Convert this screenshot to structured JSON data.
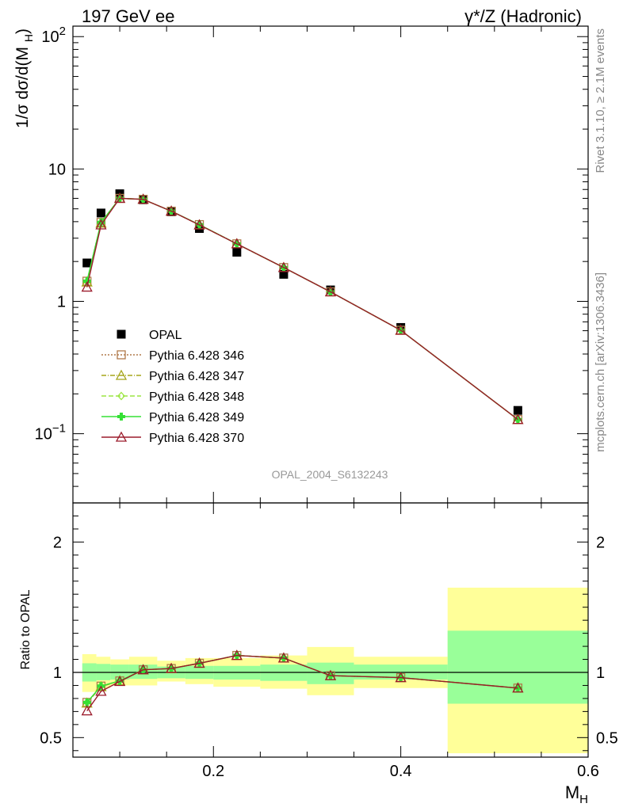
{
  "header": {
    "left_title": "197 GeV ee",
    "right_title": "γ*/Z (Hadronic)"
  },
  "side_labels": {
    "rivet": "Rivet 3.1.10, ≥ 2.1M events",
    "mcplots": "mcplots.cern.ch [arXiv:1306.3436]"
  },
  "watermark": "OPAL_2004_S6132243",
  "chart_data": [
    {
      "type": "scatter",
      "panel": "main",
      "ylabel": "1/σ dσ/d(M_H)",
      "yscale": "log",
      "xlim": [
        0.05,
        0.6
      ],
      "ylim": [
        0.03,
        120
      ],
      "y_ticklabels": [
        {
          "value": 0.1,
          "base": "10",
          "exp": "−1"
        },
        {
          "value": 1,
          "base": "1",
          "exp": ""
        },
        {
          "value": 10,
          "base": "10",
          "exp": ""
        },
        {
          "value": 100,
          "base": "10",
          "exp": "2"
        }
      ],
      "x": [
        0.065,
        0.08,
        0.1,
        0.125,
        0.155,
        0.185,
        0.225,
        0.275,
        0.325,
        0.4,
        0.525
      ],
      "series": [
        {
          "name": "OPAL",
          "role": "data",
          "color": "#000000",
          "marker": "square",
          "values": [
            1.95,
            4.65,
            6.5,
            5.85,
            4.75,
            3.55,
            2.35,
            1.6,
            1.22,
            0.635,
            0.15
          ]
        },
        {
          "name": "Pythia 6.428 346",
          "color": "#b07a4a",
          "marker": "open-square",
          "dash": "2,2",
          "values": [
            1.42,
            3.95,
            6.0,
            5.9,
            4.8,
            3.8,
            2.72,
            1.8,
            1.18,
            0.605,
            0.128
          ]
        },
        {
          "name": "Pythia 6.428 347",
          "color": "#a5a51a",
          "marker": "open-triangle",
          "dash": "6,2,1,2",
          "values": [
            1.4,
            3.9,
            6.0,
            5.9,
            4.8,
            3.78,
            2.72,
            1.8,
            1.18,
            0.605,
            0.128
          ]
        },
        {
          "name": "Pythia 6.428 348",
          "color": "#9ce642",
          "marker": "open-diamond",
          "dash": "6,3",
          "values": [
            1.41,
            3.95,
            6.0,
            5.9,
            4.8,
            3.8,
            2.72,
            1.8,
            1.18,
            0.605,
            0.128
          ]
        },
        {
          "name": "Pythia 6.428 349",
          "color": "#35e035",
          "marker": "cross",
          "dash": "",
          "values": [
            1.42,
            3.95,
            6.0,
            5.9,
            4.8,
            3.8,
            2.72,
            1.8,
            1.18,
            0.605,
            0.128
          ]
        },
        {
          "name": "Pythia 6.428 370",
          "color": "#9b1b2b",
          "marker": "open-triangle",
          "dash": "",
          "values": [
            1.28,
            3.78,
            6.0,
            5.9,
            4.8,
            3.78,
            2.72,
            1.8,
            1.18,
            0.605,
            0.128
          ]
        }
      ]
    },
    {
      "type": "line",
      "panel": "ratio",
      "ylabel": "Ratio to OPAL",
      "xlabel": "M_H",
      "xlim": [
        0.05,
        0.6
      ],
      "ylim": [
        0.35,
        2.3
      ],
      "x_ticklabels": [
        0.2,
        0.4,
        0.6
      ],
      "y_ticklabels": [
        0.5,
        1,
        2
      ],
      "bands": [
        {
          "x0": 0.06,
          "x1": 0.075,
          "stat": [
            0.93,
            1.07
          ],
          "total": [
            0.85,
            1.14
          ]
        },
        {
          "x0": 0.075,
          "x1": 0.09,
          "stat": [
            0.94,
            1.065
          ],
          "total": [
            0.88,
            1.12
          ]
        },
        {
          "x0": 0.09,
          "x1": 0.11,
          "stat": [
            0.945,
            1.06
          ],
          "total": [
            0.9,
            1.1
          ]
        },
        {
          "x0": 0.11,
          "x1": 0.14,
          "stat": [
            0.95,
            1.06
          ],
          "total": [
            0.9,
            1.12
          ]
        },
        {
          "x0": 0.14,
          "x1": 0.17,
          "stat": [
            0.955,
            1.045
          ],
          "total": [
            0.93,
            1.09
          ]
        },
        {
          "x0": 0.17,
          "x1": 0.2,
          "stat": [
            0.95,
            1.05
          ],
          "total": [
            0.91,
            1.11
          ]
        },
        {
          "x0": 0.2,
          "x1": 0.25,
          "stat": [
            0.945,
            1.05
          ],
          "total": [
            0.89,
            1.11
          ]
        },
        {
          "x0": 0.25,
          "x1": 0.3,
          "stat": [
            0.935,
            1.06
          ],
          "total": [
            0.875,
            1.13
          ]
        },
        {
          "x0": 0.3,
          "x1": 0.35,
          "stat": [
            0.91,
            1.075
          ],
          "total": [
            0.825,
            1.195
          ]
        },
        {
          "x0": 0.35,
          "x1": 0.45,
          "stat": [
            0.945,
            1.06
          ],
          "total": [
            0.88,
            1.12
          ]
        },
        {
          "x0": 0.45,
          "x1": 0.6,
          "stat": [
            0.76,
            1.32
          ],
          "total": [
            0.38,
            1.65
          ]
        }
      ],
      "x": [
        0.065,
        0.08,
        0.1,
        0.125,
        0.155,
        0.185,
        0.225,
        0.275,
        0.325,
        0.4,
        0.525
      ],
      "series": [
        {
          "name": "Pythia 6.428 346",
          "color": "#b07a4a",
          "marker": "open-square",
          "dash": "2,2",
          "values": [
            0.77,
            0.895,
            0.935,
            1.02,
            1.03,
            1.07,
            1.13,
            1.11,
            0.975,
            0.96,
            0.88
          ]
        },
        {
          "name": "Pythia 6.428 347",
          "color": "#a5a51a",
          "marker": "open-triangle",
          "dash": "6,2,1,2",
          "values": [
            0.765,
            0.89,
            0.935,
            1.02,
            1.03,
            1.07,
            1.13,
            1.11,
            0.975,
            0.96,
            0.88
          ]
        },
        {
          "name": "Pythia 6.428 348",
          "color": "#9ce642",
          "marker": "open-diamond",
          "dash": "6,3",
          "values": [
            0.77,
            0.895,
            0.935,
            1.02,
            1.03,
            1.07,
            1.13,
            1.11,
            0.975,
            0.96,
            0.88
          ]
        },
        {
          "name": "Pythia 6.428 349",
          "color": "#35e035",
          "marker": "cross",
          "dash": "",
          "values": [
            0.77,
            0.895,
            0.935,
            1.02,
            1.03,
            1.07,
            1.13,
            1.11,
            0.975,
            0.96,
            0.88
          ]
        },
        {
          "name": "Pythia 6.428 370",
          "color": "#9b1b2b",
          "marker": "open-triangle",
          "dash": "",
          "values": [
            0.705,
            0.855,
            0.93,
            1.02,
            1.03,
            1.07,
            1.13,
            1.11,
            0.975,
            0.96,
            0.88
          ]
        }
      ]
    }
  ],
  "colors": {
    "band_stat": "#99ff99",
    "band_total": "#ffff99"
  }
}
